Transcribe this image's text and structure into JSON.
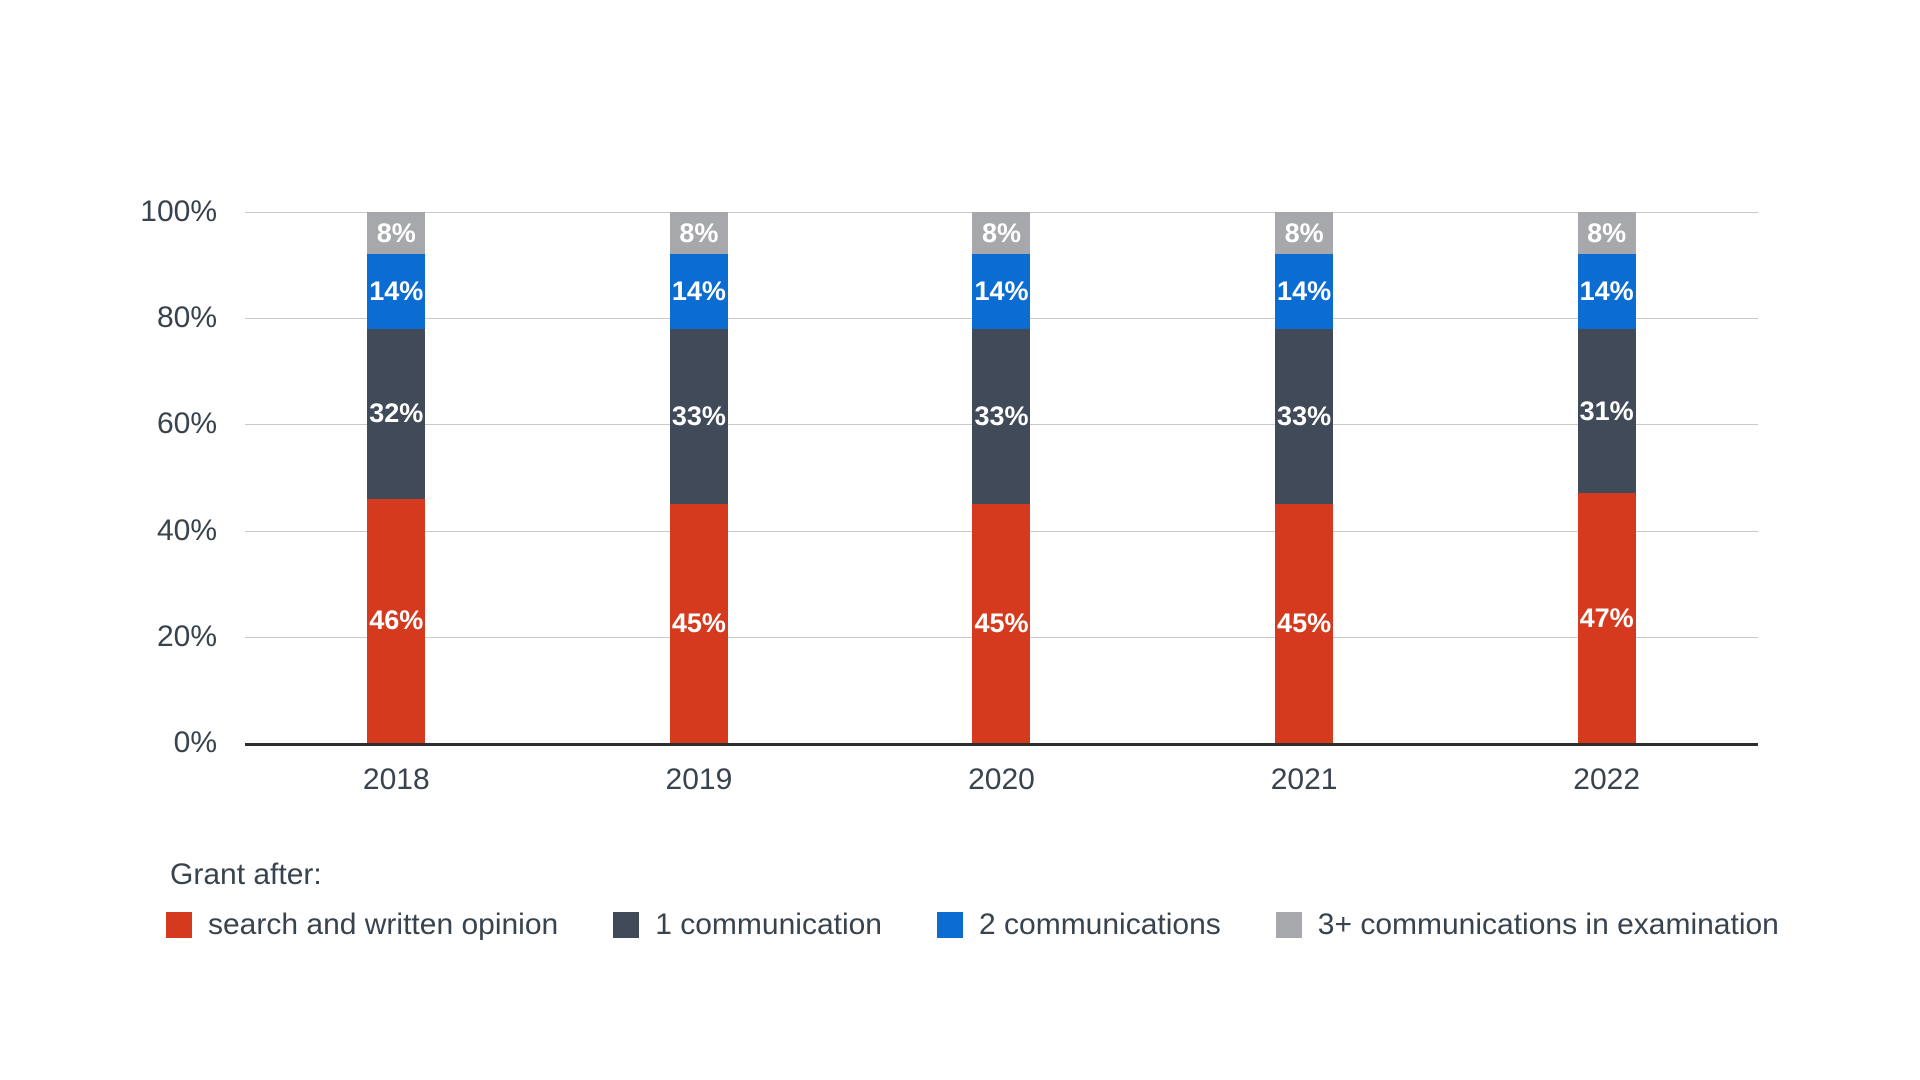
{
  "chart_data": {
    "type": "bar",
    "stacked": true,
    "orientation": "vertical",
    "title": "",
    "xlabel": "",
    "ylabel": "",
    "categories": [
      "2018",
      "2019",
      "2020",
      "2021",
      "2022"
    ],
    "series": [
      {
        "name": "search and written opinion",
        "color": "#d53a1f",
        "values": [
          46,
          45,
          45,
          45,
          47
        ]
      },
      {
        "name": "1 communication",
        "color": "#404a59",
        "values": [
          32,
          33,
          33,
          33,
          31
        ]
      },
      {
        "name": "2 communications",
        "color": "#0b6dd2",
        "values": [
          14,
          14,
          14,
          14,
          14
        ]
      },
      {
        "name": "3+ communications in examination",
        "color": "#a7a8ab",
        "values": [
          8,
          8,
          8,
          8,
          8
        ]
      }
    ],
    "value_suffix": "%",
    "ylim": [
      0,
      100
    ],
    "yticks": [
      {
        "label": "100%",
        "value": 100
      },
      {
        "label": "80%",
        "value": 80
      },
      {
        "label": "60%",
        "value": 60
      },
      {
        "label": "40%",
        "value": 40
      },
      {
        "label": "20%",
        "value": 20
      },
      {
        "label": "0%",
        "value": 0
      }
    ],
    "grid": "horizontal",
    "data_labels": "inside-white",
    "legend_title": "Grant after:",
    "legend_position": "bottom"
  },
  "colors": {
    "gridline": "#c9c9c9",
    "axis_line": "#2e2e2e",
    "label_text": "#39434e",
    "background": "#ffffff"
  }
}
